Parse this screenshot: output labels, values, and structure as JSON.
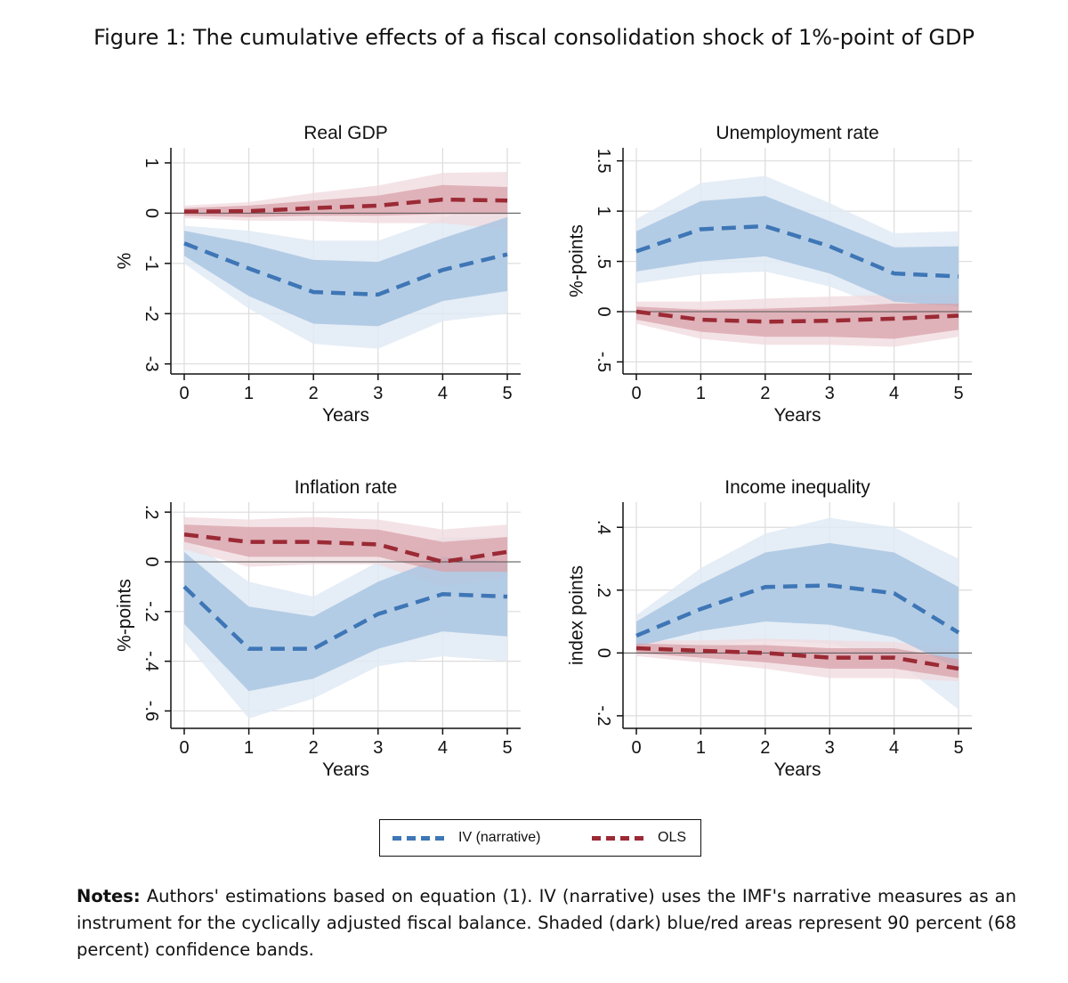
{
  "figure": {
    "caption": "Figure 1:  The cumulative effects of a fiscal consolidation shock of 1%-point of GDP"
  },
  "colors": {
    "iv_line": "#3e76b6",
    "iv_band90": "#e0eaf5",
    "iv_band68": "#aac6e2",
    "ols_line": "#9b2a35",
    "ols_band90": "#f0dade",
    "ols_band68": "#d8a1aa",
    "grid": "#dcdcdc"
  },
  "legend": {
    "iv_label": "IV (narrative)",
    "ols_label": "OLS"
  },
  "notes": {
    "label": "Notes:",
    "text": " Authors' estimations based on equation (1).  IV (narrative) uses the IMF's narrative measures as an instrument for the cyclically adjusted fiscal balance.  Shaded (dark) blue/red areas represent 90 percent (68 percent) confidence bands."
  },
  "chart_data": [
    {
      "type": "line",
      "title": "Real GDP",
      "xlabel": "Years",
      "ylabel": "%",
      "x": [
        0,
        1,
        2,
        3,
        4,
        5
      ],
      "ylim": [
        -3.2,
        1.3
      ],
      "yticks": [
        1,
        0,
        -1,
        -2,
        -3
      ],
      "ytick_labels": [
        "1",
        "0",
        "-1",
        "-2",
        "-3"
      ],
      "series": [
        {
          "name": "IV (narrative)",
          "values": [
            -0.6,
            -1.1,
            -1.57,
            -1.62,
            -1.13,
            -0.82
          ],
          "band68_lo": [
            -0.85,
            -1.65,
            -2.2,
            -2.25,
            -1.75,
            -1.55
          ],
          "band68_hi": [
            -0.35,
            -0.6,
            -0.93,
            -0.97,
            -0.5,
            -0.08
          ],
          "band90_lo": [
            -1.0,
            -1.9,
            -2.6,
            -2.7,
            -2.15,
            -2.0
          ],
          "band90_hi": [
            -0.25,
            -0.35,
            -0.55,
            -0.55,
            -0.1,
            0.35
          ]
        },
        {
          "name": "OLS",
          "values": [
            0.03,
            0.04,
            0.1,
            0.15,
            0.27,
            0.25
          ],
          "band68_lo": [
            -0.05,
            -0.08,
            -0.05,
            -0.05,
            -0.02,
            -0.02
          ],
          "band68_hi": [
            0.1,
            0.15,
            0.25,
            0.35,
            0.56,
            0.52
          ],
          "band90_lo": [
            -0.1,
            -0.15,
            -0.15,
            -0.2,
            -0.2,
            -0.32
          ],
          "band90_hi": [
            0.15,
            0.22,
            0.4,
            0.55,
            0.8,
            0.82
          ]
        }
      ]
    },
    {
      "type": "line",
      "title": "Unemployment rate",
      "xlabel": "Years",
      "ylabel": "%-points",
      "x": [
        0,
        1,
        2,
        3,
        4,
        5
      ],
      "ylim": [
        -0.62,
        1.63
      ],
      "yticks": [
        1.5,
        1,
        0.5,
        0,
        -0.5
      ],
      "ytick_labels": [
        "1.5",
        "1",
        ".5",
        "0",
        "-.5"
      ],
      "series": [
        {
          "name": "IV (narrative)",
          "values": [
            0.6,
            0.82,
            0.85,
            0.65,
            0.38,
            0.35
          ],
          "band68_lo": [
            0.4,
            0.5,
            0.55,
            0.38,
            0.1,
            0.05
          ],
          "band68_hi": [
            0.8,
            1.1,
            1.15,
            0.9,
            0.64,
            0.65
          ],
          "band90_lo": [
            0.28,
            0.37,
            0.4,
            0.25,
            0.0,
            -0.05
          ],
          "band90_hi": [
            0.92,
            1.28,
            1.35,
            1.08,
            0.78,
            0.8
          ]
        },
        {
          "name": "OLS",
          "values": [
            0.0,
            -0.08,
            -0.1,
            -0.09,
            -0.07,
            -0.04
          ],
          "band68_lo": [
            -0.08,
            -0.2,
            -0.25,
            -0.25,
            -0.27,
            -0.18
          ],
          "band68_hi": [
            0.05,
            0.02,
            0.03,
            0.05,
            0.08,
            0.08
          ],
          "band90_lo": [
            -0.12,
            -0.27,
            -0.33,
            -0.33,
            -0.35,
            -0.25
          ],
          "band90_hi": [
            0.1,
            0.1,
            0.13,
            0.15,
            0.17,
            0.17
          ]
        }
      ]
    },
    {
      "type": "line",
      "title": "Inflation rate",
      "xlabel": "Years",
      "ylabel": "%-points",
      "x": [
        0,
        1,
        2,
        3,
        4,
        5
      ],
      "ylim": [
        -0.67,
        0.24
      ],
      "yticks": [
        0.2,
        0,
        -0.2,
        -0.4,
        -0.6
      ],
      "ytick_labels": [
        ".2",
        "0",
        "-.2",
        "-.4",
        "-.6"
      ],
      "series": [
        {
          "name": "IV (narrative)",
          "values": [
            -0.1,
            -0.35,
            -0.35,
            -0.21,
            -0.13,
            -0.14
          ],
          "band68_lo": [
            -0.25,
            -0.52,
            -0.47,
            -0.35,
            -0.28,
            -0.3
          ],
          "band68_hi": [
            0.04,
            -0.18,
            -0.22,
            -0.08,
            0.02,
            0.0
          ],
          "band90_lo": [
            -0.32,
            -0.63,
            -0.55,
            -0.42,
            -0.38,
            -0.4
          ],
          "band90_hi": [
            0.1,
            -0.08,
            -0.14,
            0.0,
            0.1,
            0.1
          ]
        },
        {
          "name": "OLS",
          "values": [
            0.11,
            0.08,
            0.08,
            0.07,
            0.0,
            0.04
          ],
          "band68_lo": [
            0.08,
            0.02,
            0.02,
            0.02,
            -0.04,
            -0.04
          ],
          "band68_hi": [
            0.15,
            0.14,
            0.14,
            0.13,
            0.08,
            0.1
          ],
          "band90_lo": [
            0.05,
            -0.02,
            -0.01,
            -0.01,
            -0.1,
            -0.06
          ],
          "band90_hi": [
            0.18,
            0.17,
            0.18,
            0.17,
            0.13,
            0.15
          ]
        }
      ]
    },
    {
      "type": "line",
      "title": "Income inequality",
      "xlabel": "Years",
      "ylabel": "index points",
      "x": [
        0,
        1,
        2,
        3,
        4,
        5
      ],
      "ylim": [
        -0.24,
        0.48
      ],
      "yticks": [
        0.4,
        0.2,
        0,
        -0.2
      ],
      "ytick_labels": [
        ".4",
        ".2",
        "0",
        "-.2"
      ],
      "series": [
        {
          "name": "IV (narrative)",
          "values": [
            0.055,
            0.14,
            0.21,
            0.215,
            0.19,
            0.065
          ],
          "band68_lo": [
            0.02,
            0.07,
            0.1,
            0.09,
            0.05,
            -0.05
          ],
          "band68_hi": [
            0.1,
            0.22,
            0.32,
            0.35,
            0.32,
            0.21
          ],
          "band90_lo": [
            -0.01,
            0.02,
            0.04,
            0.03,
            -0.02,
            -0.18
          ],
          "band90_hi": [
            0.12,
            0.27,
            0.38,
            0.43,
            0.4,
            0.3
          ]
        },
        {
          "name": "OLS",
          "values": [
            0.015,
            0.007,
            0.0,
            -0.015,
            -0.015,
            -0.05
          ],
          "band68_lo": [
            0.0,
            -0.015,
            -0.03,
            -0.05,
            -0.05,
            -0.08
          ],
          "band68_hi": [
            0.03,
            0.025,
            0.025,
            0.015,
            0.015,
            -0.02
          ],
          "band90_lo": [
            -0.01,
            -0.03,
            -0.05,
            -0.08,
            -0.08,
            -0.09
          ],
          "band90_hi": [
            0.04,
            0.04,
            0.045,
            0.04,
            0.035,
            0.01
          ]
        }
      ]
    }
  ]
}
